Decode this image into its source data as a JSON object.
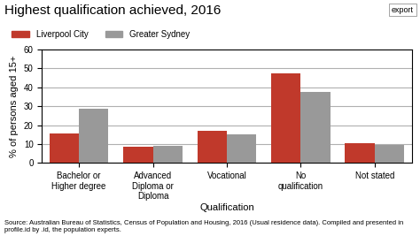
{
  "chart_data": {
    "type": "bar",
    "title": "Highest qualification achieved, 2016",
    "xlabel": "Qualification",
    "ylabel": "% of persons aged 15+",
    "categories": [
      "Bachelor or Higher degree",
      "Advanced Diploma or\nDiploma",
      "Vocational",
      "No qualification",
      "Not stated"
    ],
    "series": [
      {
        "name": "Liverpool City",
        "color": "#c0392b",
        "values": [
          15.5,
          8.5,
          17.0,
          47.5,
          10.5
        ]
      },
      {
        "name": "Greater Sydney",
        "color": "#999999",
        "values": [
          28.5,
          9.0,
          15.0,
          37.5,
          9.5
        ]
      }
    ],
    "ylim": [
      0,
      60
    ],
    "yticks": [
      0,
      10,
      20,
      30,
      40,
      50,
      60
    ],
    "grid": true,
    "legend": "upper left",
    "annotations": [
      "Source: Australian Bureau of Statistics, Census of Population and Housing, 2016 (Usual residence data). Compiled and presented in profile.id by .id, the population experts.",
      "export"
    ]
  }
}
